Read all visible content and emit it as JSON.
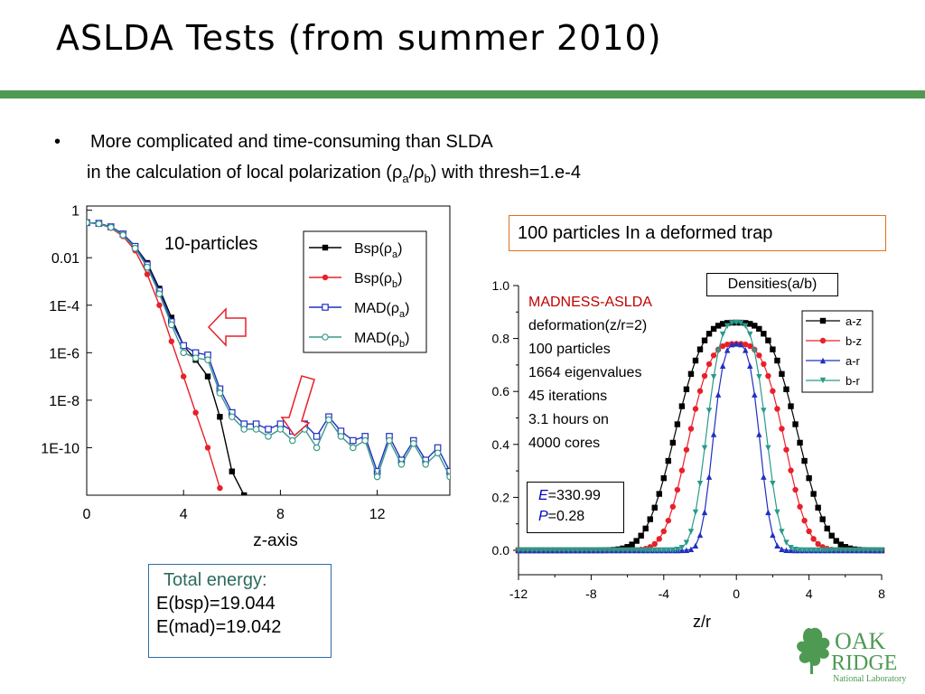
{
  "slide": {
    "title": "ASLDA Tests (from summer 2010)",
    "bullet_marker": "•",
    "bullet_line1": "More complicated and time-consuming than SLDA",
    "bullet_line2_pre": "in the calculation of local polarization (ρ",
    "bullet_sub_a": "a",
    "bullet_slash": "/ρ",
    "bullet_sub_b": "b",
    "bullet_line2_post": ") with thresh=1.e-4",
    "deformed_box": "100 particles In a deformed trap",
    "energy_title": "Total energy:",
    "energy_bsp": "E(bsp)=19.044",
    "energy_mad": "E(mad)=19.042",
    "logo_line1": "OAK",
    "logo_line2": "RIDGE",
    "logo_line3": "National Laboratory",
    "colors": {
      "accent_bar": "#4e9a52",
      "deform_border": "#e07020",
      "energy_border": "#2d6da8"
    }
  },
  "chart_data": [
    {
      "type": "line",
      "annotation": "10-particles",
      "xlabel": "z-axis",
      "ylabel": "",
      "yscale": "log",
      "xlim": [
        0,
        15
      ],
      "ylim": [
        1e-12,
        1.5
      ],
      "xticks": [
        "0",
        "4",
        "8",
        "12"
      ],
      "xtick_values": [
        0,
        4,
        8,
        12
      ],
      "yticks": [
        "1",
        "0.01",
        "1E-4",
        "1E-6",
        "1E-8",
        "1E-10"
      ],
      "ytick_values": [
        1,
        0.01,
        0.0001,
        1e-06,
        1e-08,
        1e-10
      ],
      "legend_position": "top-right",
      "series": [
        {
          "name": "Bsp(ρa)",
          "legend_main": "Bsp(ρ",
          "legend_sub": "a",
          "legend_tail": ")",
          "color": "#000000",
          "marker": "square",
          "x": [
            0,
            0.5,
            1,
            1.5,
            2,
            2.5,
            3,
            3.5,
            4,
            4.5,
            5,
            5.5,
            6,
            6.5
          ],
          "y": [
            0.3,
            0.28,
            0.2,
            0.1,
            0.03,
            0.006,
            0.0005,
            3e-05,
            2e-06,
            5e-07,
            1e-07,
            2e-09,
            1e-11,
            1e-12
          ]
        },
        {
          "name": "Bsp(ρb)",
          "legend_main": "Bsp(ρ",
          "legend_sub": "b",
          "legend_tail": ")",
          "color": "#e8202a",
          "marker": "circle",
          "x": [
            0,
            0.5,
            1,
            1.5,
            2,
            2.5,
            3,
            3.5,
            4,
            4.5,
            5,
            5.5
          ],
          "y": [
            0.3,
            0.27,
            0.18,
            0.08,
            0.02,
            0.002,
            0.0001,
            3e-06,
            1e-07,
            3e-09,
            1e-10,
            2e-12
          ]
        },
        {
          "name": "MAD(ρa)",
          "legend_main": "MAD(ρ",
          "legend_sub": "a",
          "legend_tail": ")",
          "color": "#2030c0",
          "marker": "open-square",
          "x": [
            0,
            0.5,
            1,
            1.5,
            2,
            2.5,
            3,
            3.5,
            4,
            4.5,
            5,
            5.5,
            6,
            6.5,
            7,
            7.5,
            8,
            8.5,
            9,
            9.5,
            10,
            10.5,
            11,
            11.5,
            12,
            12.5,
            13,
            13.5,
            14,
            14.5,
            15
          ],
          "y": [
            0.3,
            0.28,
            0.2,
            0.1,
            0.03,
            0.005,
            0.0004,
            2e-05,
            2e-06,
            1e-06,
            8e-07,
            3e-08,
            3e-09,
            1e-09,
            1e-09,
            6e-10,
            1e-09,
            5e-10,
            1e-09,
            3e-10,
            2e-09,
            5e-10,
            2e-10,
            3e-10,
            1e-11,
            3e-10,
            3e-11,
            2e-10,
            3e-11,
            1e-10,
            1e-11
          ]
        },
        {
          "name": "MAD(ρb)",
          "legend_main": "MAD(ρ",
          "legend_sub": "b",
          "legend_tail": ")",
          "color": "#3a9a8a",
          "marker": "open-circle",
          "x": [
            0,
            0.5,
            1,
            1.5,
            2,
            2.5,
            3,
            3.5,
            4,
            4.5,
            5,
            5.5,
            6,
            6.5,
            7,
            7.5,
            8,
            8.5,
            9,
            9.5,
            10,
            10.5,
            11,
            11.5,
            12,
            12.5,
            13,
            13.5,
            14,
            14.5,
            15
          ],
          "y": [
            0.3,
            0.27,
            0.19,
            0.09,
            0.025,
            0.004,
            0.0003,
            1.5e-05,
            1e-06,
            6e-07,
            5e-07,
            2e-08,
            2e-09,
            6e-10,
            6e-10,
            3e-10,
            6e-10,
            2e-10,
            6e-10,
            1e-10,
            1.5e-09,
            3e-10,
            1e-10,
            2e-10,
            6e-12,
            2e-10,
            2e-11,
            1.5e-10,
            2e-11,
            6e-11,
            6e-12
          ]
        }
      ]
    },
    {
      "type": "line",
      "title": "Densities(a/b)",
      "xlabel": "z/r",
      "ylabel": "",
      "xlim": [
        -12,
        8
      ],
      "ylim": [
        0,
        1.0
      ],
      "xticks": [
        "-12",
        "-8",
        "-4",
        "0",
        "4",
        "8"
      ],
      "xtick_values": [
        -12,
        -8,
        -4,
        0,
        4,
        8
      ],
      "yticks": [
        "0.0",
        "0.2",
        "0.4",
        "0.6",
        "0.8",
        "1.0"
      ],
      "ytick_values": [
        0,
        0.2,
        0.4,
        0.6,
        0.8,
        1.0
      ],
      "legend_position": "top-right",
      "annotation_title": "MADNESS-ASLDA",
      "annotation_lines": [
        "deformation(z/r=2)",
        "100 particles",
        "1664 eigenvalues",
        "45 iterations",
        "3.1 hours on",
        "4000 cores"
      ],
      "energy_E_label": "E",
      "energy_E_value": "=330.99",
      "energy_P_label": "P",
      "energy_P_value": "=0.28",
      "series": [
        {
          "name": "a-z",
          "color": "#000000",
          "marker": "square",
          "center": 0,
          "peak": 0.86,
          "width": 4.9
        },
        {
          "name": "b-z",
          "color": "#e8202a",
          "marker": "circle",
          "center": 0,
          "peak": 0.78,
          "width": 3.9
        },
        {
          "name": "a-r",
          "color": "#2030c0",
          "marker": "triangle-up",
          "center": 0,
          "peak": 0.78,
          "width": 1.9
        },
        {
          "name": "b-r",
          "color": "#2a9a8a",
          "marker": "triangle-down",
          "center": 0,
          "peak": 0.86,
          "width": 2.4
        }
      ]
    }
  ]
}
